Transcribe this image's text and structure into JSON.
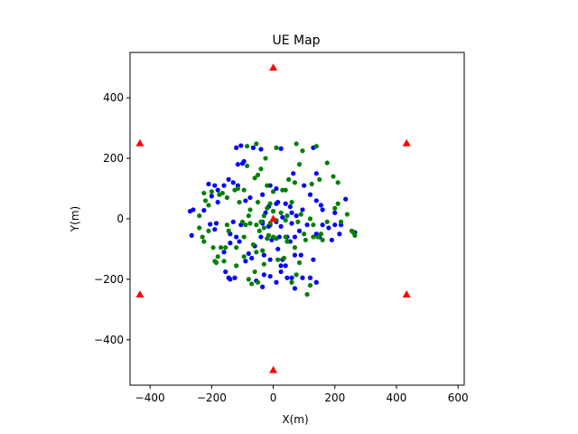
{
  "chart_data": {
    "type": "scatter",
    "title": "UE Map",
    "xlabel": "X(m)",
    "ylabel": "Y(m)",
    "xlim": [
      -465,
      620
    ],
    "ylim": [
      -550,
      550
    ],
    "xticks": [
      -400,
      -200,
      0,
      200,
      400,
      600
    ],
    "yticks": [
      -400,
      -200,
      0,
      200,
      400
    ],
    "xtick_labels": [
      "−400",
      "−200",
      "0",
      "200",
      "400",
      "600"
    ],
    "ytick_labels": [
      "−400",
      "−200",
      "0",
      "200",
      "400"
    ],
    "grid": false,
    "legend": "none",
    "series": [
      {
        "marker": "triangle",
        "color": "#ff0000",
        "points": [
          [
            0,
            500
          ],
          [
            -433,
            250
          ],
          [
            433,
            250
          ],
          [
            -433,
            -250
          ],
          [
            433,
            -250
          ],
          [
            0,
            -500
          ],
          [
            0,
            0
          ]
        ]
      },
      {
        "marker": "circle",
        "color": "#0000ff",
        "points": [
          [
            -120,
            235
          ],
          [
            -105,
            242
          ],
          [
            -65,
            235
          ],
          [
            -40,
            230
          ],
          [
            25,
            232
          ],
          [
            130,
            235
          ],
          [
            -115,
            180
          ],
          [
            -95,
            190
          ],
          [
            -100,
            183
          ],
          [
            -210,
            115
          ],
          [
            -190,
            110
          ],
          [
            -180,
            95
          ],
          [
            -160,
            110
          ],
          [
            -145,
            130
          ],
          [
            -130,
            120
          ],
          [
            -115,
            110
          ],
          [
            -200,
            75
          ],
          [
            -180,
            55
          ],
          [
            -260,
            30
          ],
          [
            -270,
            25
          ],
          [
            -225,
            28
          ],
          [
            -205,
            -18
          ],
          [
            -185,
            -15
          ],
          [
            -190,
            -35
          ],
          [
            -265,
            -55
          ],
          [
            -140,
            -50
          ],
          [
            -120,
            -60
          ],
          [
            -110,
            -75
          ],
          [
            -140,
            -80
          ],
          [
            -160,
            -110
          ],
          [
            -155,
            -175
          ],
          [
            -145,
            -195
          ],
          [
            -140,
            -200
          ],
          [
            -125,
            -195
          ],
          [
            -55,
            -205
          ],
          [
            -35,
            -225
          ],
          [
            10,
            -210
          ],
          [
            60,
            -195
          ],
          [
            70,
            -230
          ],
          [
            95,
            -195
          ],
          [
            120,
            -195
          ],
          [
            140,
            -210
          ],
          [
            -70,
            -130
          ],
          [
            -30,
            -120
          ],
          [
            -10,
            -135
          ],
          [
            30,
            -135
          ],
          [
            25,
            -155
          ],
          [
            40,
            -155
          ],
          [
            70,
            -120
          ],
          [
            90,
            -120
          ],
          [
            130,
            -135
          ],
          [
            -35,
            -10
          ],
          [
            -15,
            -25
          ],
          [
            -25,
            20
          ],
          [
            10,
            50
          ],
          [
            15,
            55
          ],
          [
            40,
            50
          ],
          [
            55,
            40
          ],
          [
            45,
            -60
          ],
          [
            55,
            -75
          ],
          [
            70,
            -60
          ],
          [
            110,
            -20
          ],
          [
            140,
            -50
          ],
          [
            150,
            -60
          ],
          [
            75,
            10
          ],
          [
            95,
            30
          ],
          [
            155,
            45
          ],
          [
            160,
            30
          ],
          [
            140,
            60
          ],
          [
            120,
            80
          ],
          [
            140,
            150
          ],
          [
            100,
            110
          ],
          [
            65,
            150
          ],
          [
            10,
            100
          ],
          [
            -10,
            110
          ],
          [
            -35,
            80
          ],
          [
            -75,
            70
          ],
          [
            -90,
            60
          ],
          [
            -130,
            -10
          ],
          [
            -105,
            -20
          ],
          [
            160,
            -20
          ],
          [
            180,
            -30
          ],
          [
            200,
            -20
          ],
          [
            220,
            -20
          ],
          [
            235,
            65
          ],
          [
            200,
            20
          ],
          [
            215,
            -50
          ],
          [
            190,
            -70
          ],
          [
            265,
            -45
          ],
          [
            -35,
            -15
          ],
          [
            60,
            -15
          ],
          [
            85,
            -40
          ],
          [
            25,
            -25
          ],
          [
            20,
            -60
          ],
          [
            15,
            -100
          ],
          [
            -5,
            -70
          ],
          [
            -10,
            -20
          ],
          [
            30,
            5
          ],
          [
            10,
            -10
          ],
          [
            60,
            20
          ],
          [
            -15,
            40
          ],
          [
            -40,
            -60
          ],
          [
            -60,
            -90
          ],
          [
            -80,
            -115
          ],
          [
            -90,
            -140
          ],
          [
            -30,
            -185
          ],
          [
            -10,
            -190
          ],
          [
            25,
            -175
          ],
          [
            45,
            -195
          ]
        ]
      },
      {
        "marker": "circle",
        "color": "#008000",
        "points": [
          [
            -85,
            240
          ],
          [
            -55,
            248
          ],
          [
            10,
            235
          ],
          [
            75,
            248
          ],
          [
            140,
            240
          ],
          [
            95,
            225
          ],
          [
            -25,
            200
          ],
          [
            -85,
            175
          ],
          [
            -40,
            165
          ],
          [
            85,
            180
          ],
          [
            -165,
            85
          ],
          [
            -125,
            95
          ],
          [
            -115,
            100
          ],
          [
            -95,
            95
          ],
          [
            -60,
            135
          ],
          [
            -50,
            145
          ],
          [
            -20,
            110
          ],
          [
            0,
            90
          ],
          [
            40,
            95
          ],
          [
            -225,
            85
          ],
          [
            -210,
            45
          ],
          [
            -240,
            -30
          ],
          [
            -225,
            -75
          ],
          [
            -190,
            -140
          ],
          [
            -185,
            -145
          ],
          [
            -180,
            -125
          ],
          [
            -195,
            -95
          ],
          [
            -155,
            -95
          ],
          [
            -120,
            -95
          ],
          [
            -95,
            -60
          ],
          [
            -90,
            -20
          ],
          [
            -75,
            -15
          ],
          [
            -75,
            30
          ],
          [
            -50,
            55
          ],
          [
            -20,
            35
          ],
          [
            0,
            25
          ],
          [
            25,
            20
          ],
          [
            45,
            10
          ],
          [
            40,
            -5
          ],
          [
            10,
            -5
          ],
          [
            -10,
            -15
          ],
          [
            -30,
            -30
          ],
          [
            -20,
            -65
          ],
          [
            -55,
            -110
          ],
          [
            -35,
            -105
          ],
          [
            -30,
            -150
          ],
          [
            -60,
            -175
          ],
          [
            -50,
            -210
          ],
          [
            -80,
            -200
          ],
          [
            -70,
            -215
          ],
          [
            15,
            -135
          ],
          [
            35,
            -130
          ],
          [
            75,
            -185
          ],
          [
            60,
            -210
          ],
          [
            110,
            -250
          ],
          [
            120,
            -220
          ],
          [
            85,
            -145
          ],
          [
            70,
            -95
          ],
          [
            45,
            -75
          ],
          [
            40,
            -60
          ],
          [
            0,
            -60
          ],
          [
            10,
            -65
          ],
          [
            -15,
            -55
          ],
          [
            100,
            -50
          ],
          [
            105,
            -70
          ],
          [
            130,
            -60
          ],
          [
            145,
            -60
          ],
          [
            175,
            -10
          ],
          [
            130,
            -20
          ],
          [
            120,
            0
          ],
          [
            155,
            -50
          ],
          [
            160,
            -70
          ],
          [
            200,
            35
          ],
          [
            220,
            -10
          ],
          [
            240,
            15
          ],
          [
            210,
            50
          ],
          [
            260,
            -45
          ],
          [
            265,
            -55
          ],
          [
            255,
            -40
          ],
          [
            210,
            120
          ],
          [
            195,
            140
          ],
          [
            175,
            185
          ],
          [
            150,
            130
          ],
          [
            125,
            115
          ],
          [
            70,
            120
          ],
          [
            50,
            130
          ],
          [
            30,
            95
          ],
          [
            60,
            55
          ],
          [
            90,
            15
          ],
          [
            80,
            -10
          ],
          [
            -10,
            50
          ],
          [
            -30,
            10
          ],
          [
            -45,
            -40
          ],
          [
            -65,
            -85
          ],
          [
            -95,
            -125
          ],
          [
            -120,
            -155
          ],
          [
            -160,
            -140
          ],
          [
            -170,
            -95
          ],
          [
            -145,
            -40
          ],
          [
            -100,
            -10
          ],
          [
            -80,
            10
          ],
          [
            -110,
            55
          ],
          [
            -150,
            70
          ],
          [
            -175,
            80
          ],
          [
            -200,
            90
          ],
          [
            -220,
            60
          ],
          [
            -240,
            10
          ],
          [
            -230,
            -60
          ],
          [
            -210,
            -40
          ],
          [
            -150,
            -20
          ],
          [
            -55,
            -20
          ],
          [
            -40,
            -10
          ]
        ]
      }
    ]
  }
}
